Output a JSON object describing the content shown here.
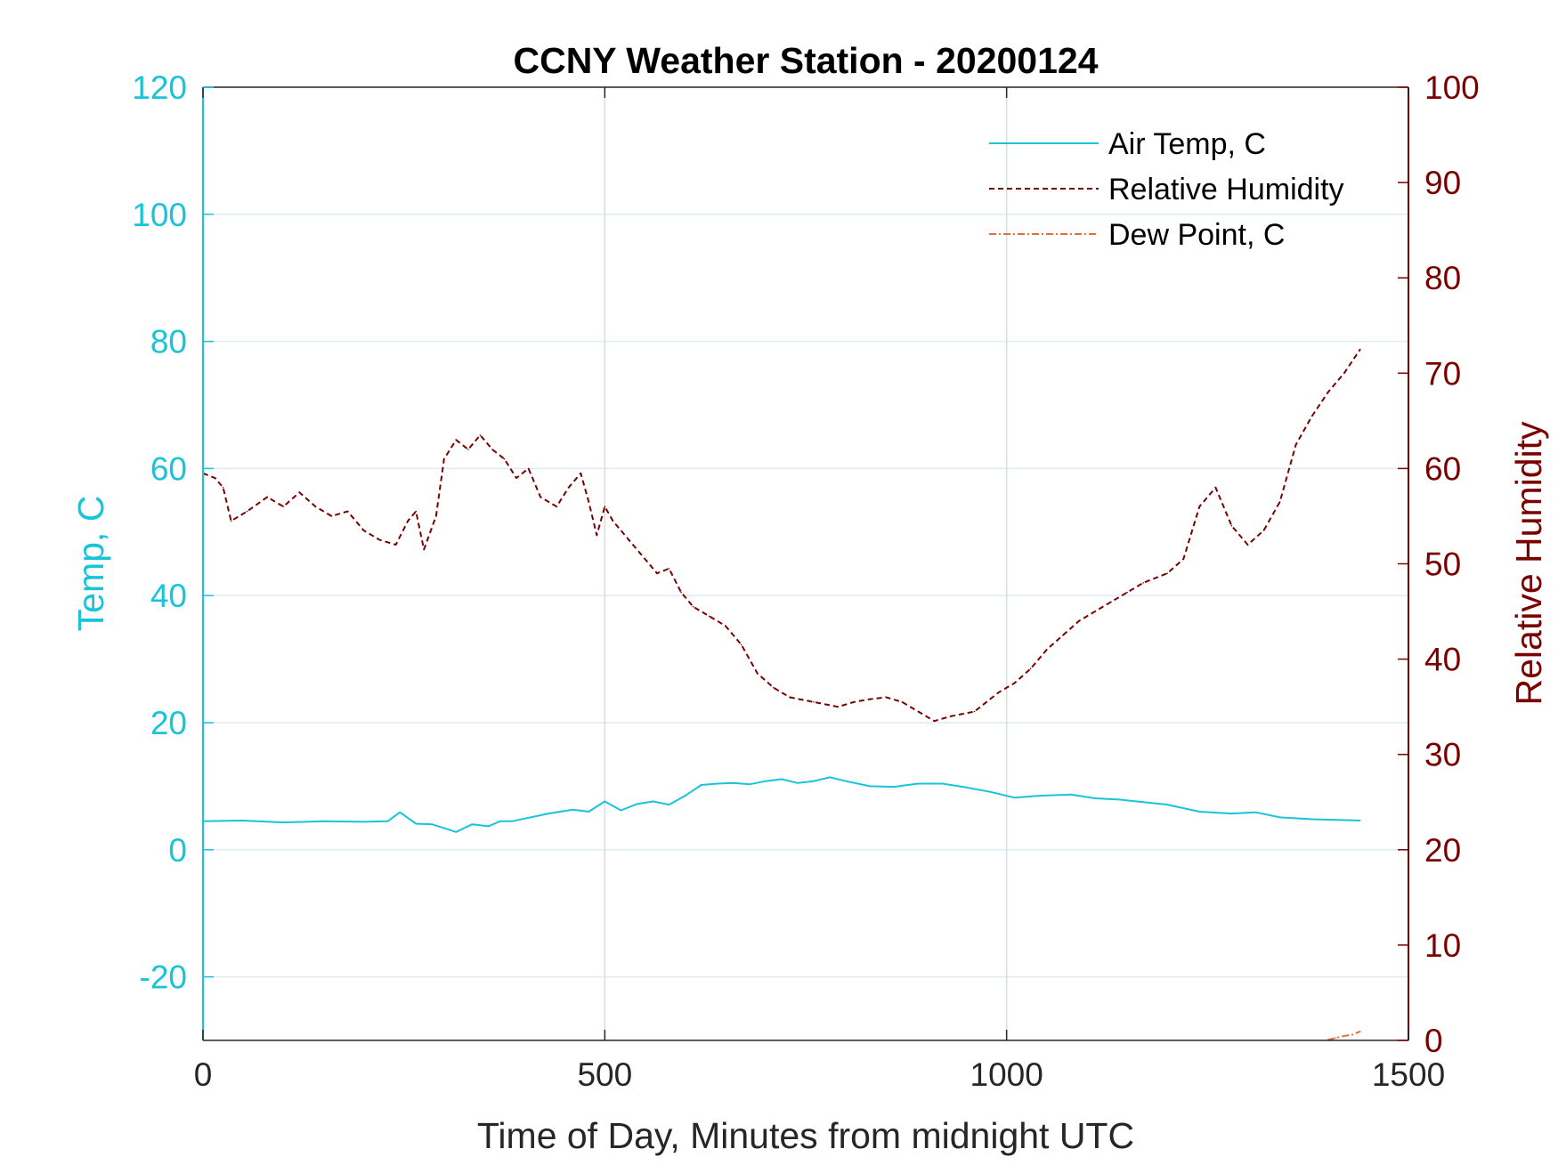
{
  "chart_data": {
    "type": "line",
    "title": "CCNY Weather Station - 20200124",
    "xlabel": "Time of Day, Minutes from midnight UTC",
    "ylabel_left": "Temp, C",
    "ylabel_right": "Relative Humidity",
    "xlim": [
      0,
      1500
    ],
    "ylim_left": [
      -30,
      120
    ],
    "ylim_right": [
      0,
      100
    ],
    "x_ticks": [
      "0",
      "500",
      "1000",
      "1500"
    ],
    "y_ticks_left": [
      "-20",
      "0",
      "20",
      "40",
      "60",
      "80",
      "100",
      "120"
    ],
    "y_ticks_right": [
      "0",
      "10",
      "20",
      "30",
      "40",
      "50",
      "60",
      "70",
      "80",
      "90",
      "100"
    ],
    "grid": true,
    "legend_position": "top-right",
    "colors": {
      "air_temp": "#19c4d8",
      "humidity": "#7a0000",
      "dew_point": "#e0703a",
      "axis_left": "#19c4d8",
      "axis_right": "#7a0000",
      "grid": "#dcecf5"
    },
    "series": [
      {
        "name": "Air Temp, C",
        "axis": "left",
        "style": "solid",
        "x": [
          0,
          50,
          100,
          150,
          200,
          230,
          245,
          265,
          285,
          315,
          335,
          355,
          370,
          385,
          400,
          430,
          460,
          480,
          500,
          520,
          540,
          560,
          580,
          600,
          620,
          640,
          660,
          680,
          700,
          720,
          740,
          760,
          780,
          800,
          830,
          860,
          890,
          920,
          950,
          980,
          1010,
          1040,
          1080,
          1110,
          1140,
          1170,
          1200,
          1240,
          1280,
          1310,
          1340,
          1380,
          1410,
          1440
        ],
        "values": [
          4.5,
          4.6,
          4.3,
          4.5,
          4.4,
          4.5,
          5.9,
          4.1,
          4.0,
          2.8,
          4.0,
          3.7,
          4.5,
          4.5,
          4.9,
          5.7,
          6.3,
          6.0,
          7.6,
          6.2,
          7.2,
          7.6,
          7.1,
          8.5,
          10.2,
          10.4,
          10.5,
          10.3,
          10.8,
          11.1,
          10.5,
          10.8,
          11.4,
          10.8,
          10.0,
          9.9,
          10.4,
          10.4,
          9.8,
          9.1,
          8.2,
          8.5,
          8.7,
          8.1,
          7.9,
          7.5,
          7.1,
          6.0,
          5.7,
          5.9,
          5.1,
          4.8,
          4.7,
          4.6
        ]
      },
      {
        "name": "Relative Humidity",
        "axis": "right",
        "style": "dashed",
        "x": [
          0,
          15,
          25,
          35,
          55,
          80,
          100,
          120,
          140,
          160,
          180,
          200,
          220,
          240,
          255,
          265,
          275,
          290,
          300,
          315,
          330,
          345,
          360,
          375,
          390,
          405,
          420,
          440,
          455,
          470,
          480,
          490,
          500,
          510,
          530,
          550,
          565,
          580,
          595,
          610,
          630,
          650,
          670,
          690,
          710,
          730,
          760,
          790,
          810,
          830,
          850,
          870,
          890,
          910,
          930,
          960,
          990,
          1010,
          1030,
          1050,
          1070,
          1090,
          1110,
          1130,
          1150,
          1170,
          1200,
          1220,
          1240,
          1260,
          1280,
          1300,
          1320,
          1340,
          1360,
          1380,
          1400,
          1420,
          1440
        ],
        "values": [
          59.5,
          59.0,
          58.0,
          54.5,
          55.5,
          57.0,
          56.0,
          57.5,
          56.0,
          55.0,
          55.5,
          53.5,
          52.5,
          52.0,
          54.5,
          55.5,
          51.5,
          55.0,
          61.0,
          63.0,
          62.0,
          63.5,
          62.0,
          61.0,
          59.0,
          60.0,
          57.0,
          56.0,
          58.0,
          59.5,
          56.5,
          53.0,
          56.0,
          54.5,
          52.5,
          50.5,
          49.0,
          49.5,
          47.0,
          45.5,
          44.5,
          43.5,
          41.5,
          38.5,
          37.0,
          36.0,
          35.5,
          35.0,
          35.5,
          35.8,
          36.0,
          35.5,
          34.5,
          33.5,
          34.0,
          34.5,
          36.5,
          37.5,
          39.0,
          41.0,
          42.5,
          44.0,
          45.0,
          46.0,
          47.0,
          48.0,
          49.0,
          50.5,
          56.0,
          58.0,
          54.0,
          52.0,
          53.5,
          56.5,
          62.5,
          65.5,
          68.0,
          70.0,
          72.5
        ]
      },
      {
        "name": "Dew Point, C",
        "axis": "left",
        "style": "dash-dot",
        "x": [
          1400,
          1410,
          1420,
          1430,
          1440
        ],
        "values": [
          -29.9,
          -29.6,
          -29.3,
          -29.1,
          -28.6
        ]
      }
    ]
  }
}
